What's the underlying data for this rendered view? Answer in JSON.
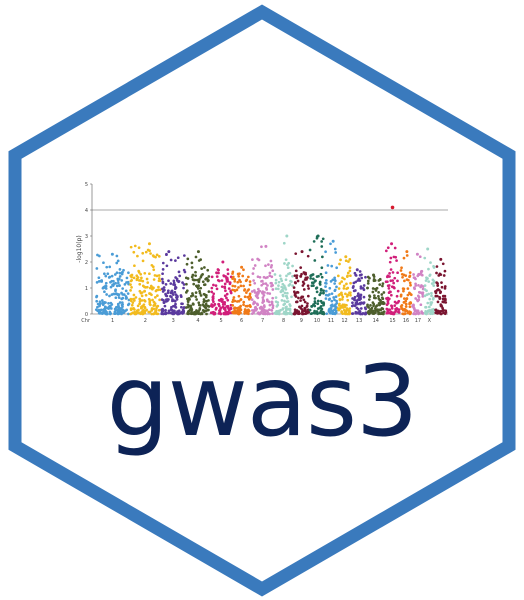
{
  "logo": {
    "text": "gwas3",
    "text_color": "#0d2356",
    "border_color": "#3a7abd"
  },
  "chart_data": {
    "type": "scatter",
    "subtype": "manhattan",
    "ylabel": "-log10(p)",
    "ylim": [
      0,
      5
    ],
    "y_ticks": [
      "0",
      "1",
      "2",
      "3",
      "4",
      "5"
    ],
    "threshold": 4,
    "grid": false,
    "x_axis_title": "Chr",
    "chromosomes": [
      {
        "label": "1",
        "color": "#4a9cd6",
        "count": 62,
        "max": 2.3
      },
      {
        "label": "2",
        "color": "#f2bb1e",
        "count": 56,
        "max": 2.7
      },
      {
        "label": "3",
        "color": "#5b3a9e",
        "count": 44,
        "max": 2.4
      },
      {
        "label": "4",
        "color": "#4d5e2c",
        "count": 44,
        "max": 2.4
      },
      {
        "label": "5",
        "color": "#d11f7a",
        "count": 38,
        "max": 2.0
      },
      {
        "label": "6",
        "color": "#f07a18",
        "count": 34,
        "max": 1.8
      },
      {
        "label": "7",
        "color": "#d183c4",
        "count": 40,
        "max": 2.6
      },
      {
        "label": "8",
        "color": "#9fd6c8",
        "count": 34,
        "max": 3.0
      },
      {
        "label": "9",
        "color": "#7a1530",
        "count": 28,
        "max": 2.4
      },
      {
        "label": "10",
        "color": "#1f6e58",
        "count": 26,
        "max": 3.0
      },
      {
        "label": "11",
        "color": "#4a9cd6",
        "count": 22,
        "max": 2.8
      },
      {
        "label": "12",
        "color": "#f2bb1e",
        "count": 24,
        "max": 2.2
      },
      {
        "label": "13",
        "color": "#5b3a9e",
        "count": 26,
        "max": 1.7
      },
      {
        "label": "14",
        "color": "#4d5e2c",
        "count": 32,
        "max": 1.5
      },
      {
        "label": "15",
        "color": "#d11f7a",
        "count": 26,
        "max": 2.7
      },
      {
        "label": "16",
        "color": "#f07a18",
        "count": 20,
        "max": 2.4
      },
      {
        "label": "17",
        "color": "#d183c4",
        "count": 20,
        "max": 2.3
      },
      {
        "label": "X",
        "color": "#9fd6c8",
        "count": 18,
        "max": 2.5
      },
      {
        "label": "",
        "color": "#7a1530",
        "count": 20,
        "max": 2.1
      }
    ],
    "top_hit": {
      "chromosome": "15",
      "value": 4.1,
      "color": "#d6192e"
    }
  }
}
